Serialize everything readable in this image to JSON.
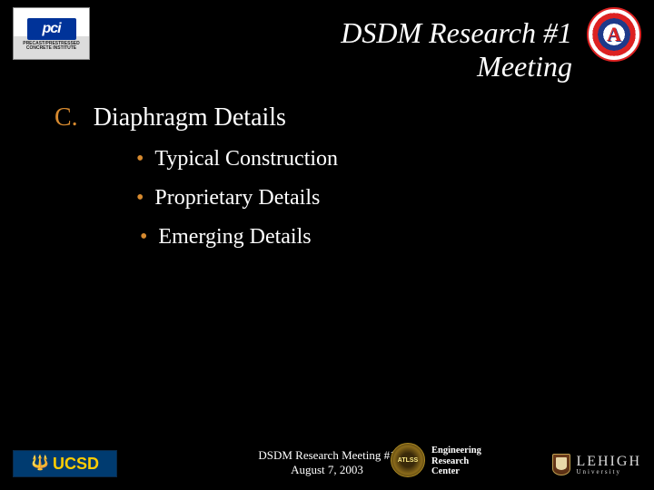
{
  "header": {
    "title_line1": "DSDM Research #1",
    "title_line2": "Meeting"
  },
  "section": {
    "letter": "C.",
    "heading": "Diaphragm Details"
  },
  "bullets": [
    "Typical Construction",
    "Proprietary Details",
    "Emerging Details"
  ],
  "footer": {
    "line1": "DSDM Research Meeting #1",
    "line2": "August 7, 2003"
  },
  "logos": {
    "pci_abbr": "pci",
    "pci_sub": "PRECAST/PRESTRESSED\nCONCRETE INSTITUTE",
    "ucsd": "UCSD",
    "atlss": "ATLSS",
    "erc_l1": "Engineering",
    "erc_l2": "Research",
    "erc_l3": "Center",
    "lehigh": "LEHIGH",
    "lehigh_sub": "University",
    "ua_letter": "A"
  },
  "colors": {
    "background": "#000000",
    "text_primary": "#ffffff",
    "accent": "#d78a2f",
    "ucsd_bg": "#003b70",
    "ucsd_gold": "#ffcc00",
    "pci_blue": "#003399"
  }
}
